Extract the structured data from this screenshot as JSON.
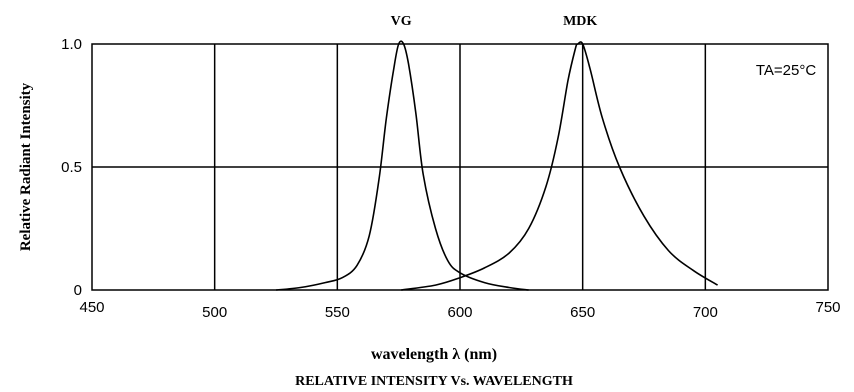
{
  "chart_data": {
    "type": "line",
    "title": "RELATIVE INTENSITY Vs. WAVELENGTH",
    "xlabel": "wavelength λ (nm)",
    "ylabel": "Relative Radiant Intensity",
    "xlim": [
      450,
      750
    ],
    "ylim": [
      0,
      1.0
    ],
    "x_ticks": [
      "450",
      "500",
      "550",
      "600",
      "650",
      "700",
      "750"
    ],
    "y_ticks": [
      "0",
      "0.5",
      "1.0"
    ],
    "grid": true,
    "annotation": "TA=25°C",
    "series": [
      {
        "name": "VG",
        "x": [
          525,
          535,
          545,
          552,
          558,
          563,
          567,
          570,
          573,
          575,
          577,
          579,
          582,
          585,
          590,
          595,
          600,
          610,
          620,
          628
        ],
        "y": [
          0.0,
          0.01,
          0.03,
          0.05,
          0.1,
          0.22,
          0.45,
          0.7,
          0.9,
          1.0,
          1.0,
          0.92,
          0.72,
          0.47,
          0.25,
          0.12,
          0.07,
          0.03,
          0.01,
          0.0
        ]
      },
      {
        "name": "MDK",
        "x": [
          576,
          590,
          600,
          610,
          620,
          628,
          635,
          640,
          644,
          647,
          648,
          650,
          653,
          658,
          665,
          675,
          685,
          695,
          705
        ],
        "y": [
          0.0,
          0.02,
          0.05,
          0.09,
          0.15,
          0.25,
          0.42,
          0.62,
          0.85,
          0.98,
          1.0,
          1.0,
          0.9,
          0.7,
          0.5,
          0.3,
          0.16,
          0.08,
          0.02
        ]
      }
    ]
  }
}
